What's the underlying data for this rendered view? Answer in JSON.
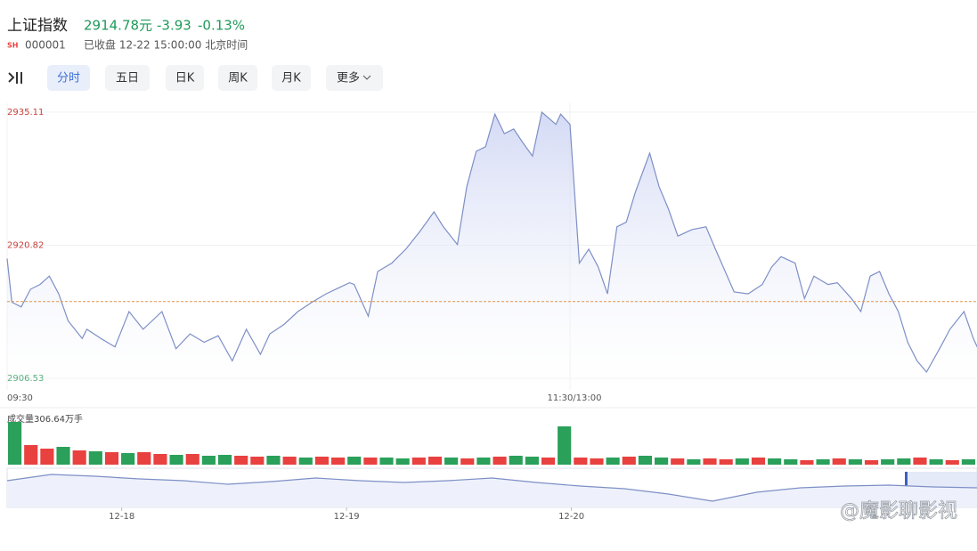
{
  "header": {
    "name": "上证指数",
    "price": "2914.78元",
    "change": "-3.93",
    "change_pct": "-0.13%",
    "market": "SH",
    "code": "000001",
    "status": "已收盘 12-22 15:00:00 北京时间"
  },
  "tabs": [
    "分时",
    "五日",
    "日K",
    "周K",
    "月K",
    "更多"
  ],
  "chart_data": [
    {
      "type": "line",
      "color": "#7d8fc6",
      "fill": "#e6eafa",
      "x": [
        0,
        1,
        3,
        5,
        7,
        9,
        11,
        13,
        16,
        17,
        20,
        23,
        26,
        29,
        33,
        36,
        39,
        42,
        45,
        48,
        51,
        54,
        56,
        59,
        62,
        65,
        68,
        73,
        74,
        77,
        79,
        82,
        85,
        88,
        91,
        93,
        96,
        98,
        100,
        102,
        104,
        106,
        108,
        110,
        112,
        114,
        117,
        118,
        120,
        122,
        124,
        126,
        128,
        130,
        132,
        134,
        137,
        139,
        141,
        143,
        146,
        149,
        151,
        155,
        158,
        161,
        163,
        165,
        168,
        170,
        172,
        175,
        177,
        180,
        182,
        184,
        186,
        188,
        190,
        192,
        194,
        196,
        199,
        201,
        204,
        206,
        207
      ],
      "values": [
        2919.4,
        2914.7,
        2914.2,
        2916.1,
        2916.6,
        2917.5,
        2915.6,
        2912.7,
        2910.8,
        2911.8,
        2910.8,
        2909.9,
        2913.7,
        2911.8,
        2913.7,
        2909.7,
        2911.3,
        2910.4,
        2911.1,
        2908.4,
        2911.8,
        2909.1,
        2911.3,
        2912.3,
        2913.7,
        2914.7,
        2915.6,
        2916.8,
        2916.6,
        2913.2,
        2918.0,
        2918.9,
        2920.4,
        2922.3,
        2924.4,
        2922.8,
        2920.9,
        2927.1,
        2930.9,
        2931.4,
        2934.9,
        2932.8,
        2933.3,
        2931.8,
        2930.4,
        2935.11,
        2933.8,
        2934.9,
        2933.8,
        2918.9,
        2920.4,
        2918.5,
        2915.6,
        2922.8,
        2923.3,
        2926.6,
        2930.7,
        2927.1,
        2924.7,
        2921.8,
        2922.5,
        2922.8,
        2920.4,
        2915.8,
        2915.6,
        2916.6,
        2918.5,
        2919.6,
        2918.9,
        2915.1,
        2917.5,
        2916.6,
        2916.8,
        2915.1,
        2913.7,
        2917.5,
        2918.0,
        2915.6,
        2913.7,
        2910.4,
        2908.4,
        2907.2,
        2909.9,
        2911.8,
        2913.7,
        2910.8,
        2909.7
      ],
      "xlim": [
        0,
        207
      ],
      "ylim": [
        2906.53,
        2935.11
      ],
      "yticks": [
        2906.53,
        2920.82,
        2935.11
      ],
      "xticks": [
        {
          "value": 0,
          "label": "09:30"
        },
        {
          "value": 120,
          "label": "11:30/13:00"
        }
      ],
      "reference_line": 2914.78,
      "up_color": "#c8413d",
      "down_color": "#2a9a58"
    },
    {
      "type": "bar",
      "title": "成交量306.64万手",
      "up_color": "#e8413f",
      "down_color": "#2aa05a",
      "ylim": [
        0,
        50
      ],
      "values": [
        48,
        22,
        18,
        20,
        16,
        15,
        14,
        13,
        14,
        12,
        11,
        12,
        10,
        11,
        10,
        9,
        10,
        9,
        8,
        9,
        8,
        9,
        8,
        8,
        7,
        8,
        9,
        8,
        7,
        8,
        9,
        10,
        9,
        8,
        43,
        8,
        7,
        8,
        9,
        10,
        8,
        7,
        6,
        7,
        6,
        7,
        8,
        7,
        6,
        5,
        6,
        7,
        6,
        5,
        6,
        7,
        8,
        6,
        5,
        6
      ],
      "up": [
        false,
        true,
        true,
        false,
        true,
        false,
        true,
        false,
        true,
        true,
        false,
        true,
        false,
        false,
        true,
        true,
        false,
        true,
        false,
        true,
        true,
        false,
        true,
        false,
        false,
        true,
        true,
        false,
        true,
        false,
        true,
        false,
        false,
        true,
        false,
        true,
        true,
        false,
        true,
        false,
        false,
        true,
        false,
        true,
        true,
        false,
        true,
        false,
        false,
        true,
        false,
        true,
        false,
        true,
        false,
        false,
        true,
        false,
        true,
        false
      ]
    },
    {
      "type": "line",
      "color": "#7d8fc6",
      "fill": "#eef1fb",
      "x": [
        0,
        1,
        2,
        3,
        4,
        5,
        6,
        7,
        8,
        9,
        10,
        11,
        12,
        13,
        14,
        15,
        16,
        17,
        18,
        19,
        20,
        21,
        22
      ],
      "values": [
        30,
        37,
        35,
        32,
        30,
        26,
        29,
        33,
        30,
        28,
        30,
        33,
        28,
        24,
        21,
        15,
        7,
        17,
        22,
        24,
        25,
        23,
        22
      ],
      "xlim": [
        0,
        22
      ],
      "ylim": [
        0,
        40
      ],
      "xticks": [
        {
          "value": 2.6,
          "label": "12-18"
        },
        {
          "value": 7.7,
          "label": "12-19"
        },
        {
          "value": 12.8,
          "label": "12-20"
        }
      ]
    }
  ],
  "watermark": "@魔影聊影视"
}
